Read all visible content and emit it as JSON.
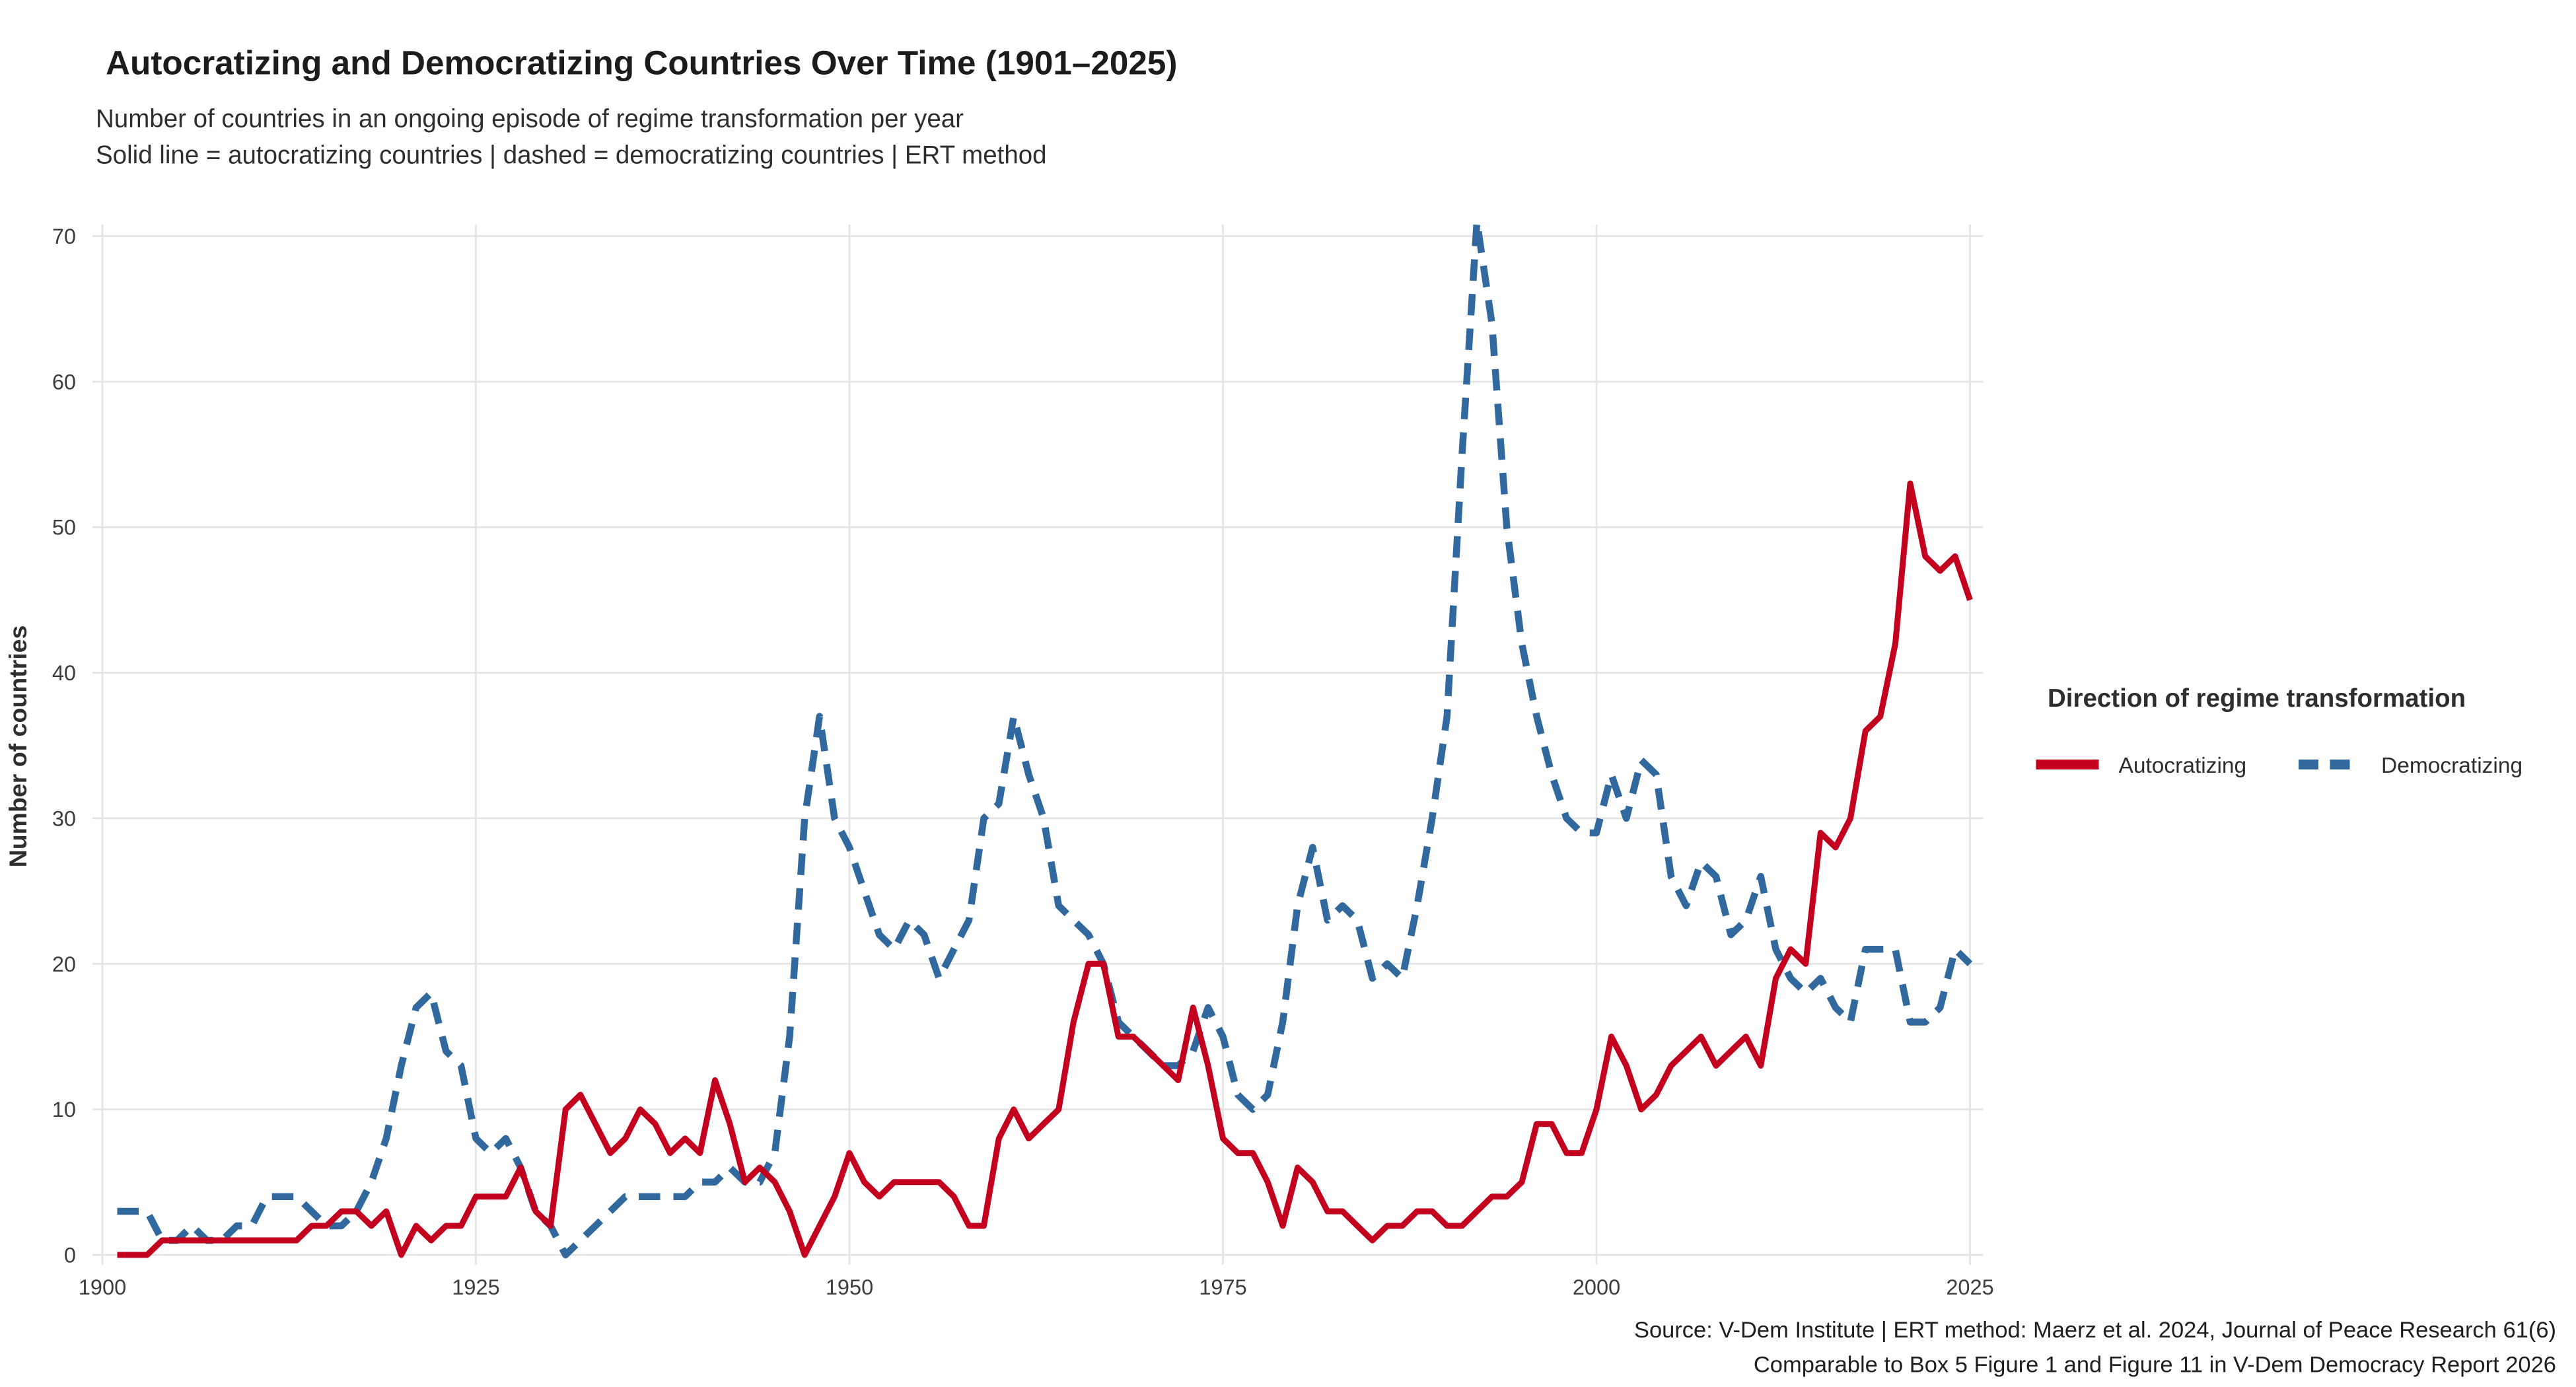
{
  "page": {
    "title": "Autocratizing and Democratizing Countries Over Time (1901–2025)",
    "subtitle1": "Number of countries in an ongoing episode of regime transformation per year",
    "subtitle2": "Solid line = autocratizing countries  |  dashed = democratizing countries  |  ERT method",
    "caption1": "Source: V-Dem Institute  |  ERT method: Maerz et al. 2024, Journal of Peace Research 61(6)",
    "caption2": "Comparable to Box 5 Figure 1 and Figure 11 in V-Dem Democracy Report 2026"
  },
  "legend": {
    "title": "Direction of regime transformation",
    "entries": [
      {
        "label": "Autocratizing",
        "color": "#c4001f",
        "dash": false
      },
      {
        "label": "Democratizing",
        "color": "#31699e",
        "dash": true
      }
    ]
  },
  "chart_data": {
    "type": "line",
    "title": "Autocratizing and Democratizing Countries Over Time (1901–2025)",
    "xlabel": "",
    "ylabel": "Number of countries",
    "xlim": [
      1900,
      2025
    ],
    "ylim": [
      0,
      70
    ],
    "xticks": [
      1900,
      1925,
      1950,
      1975,
      2000,
      2025
    ],
    "yticks": [
      0,
      10,
      20,
      30,
      40,
      50,
      60,
      70
    ],
    "grid": true,
    "grid_color": "#e4e4e4",
    "background": "#ffffff",
    "legend_position": "right",
    "x": [
      1901,
      1902,
      1903,
      1904,
      1905,
      1906,
      1907,
      1908,
      1909,
      1910,
      1911,
      1912,
      1913,
      1914,
      1915,
      1916,
      1917,
      1918,
      1919,
      1920,
      1921,
      1922,
      1923,
      1924,
      1925,
      1926,
      1927,
      1928,
      1929,
      1930,
      1931,
      1932,
      1933,
      1934,
      1935,
      1936,
      1937,
      1938,
      1939,
      1940,
      1941,
      1942,
      1943,
      1944,
      1945,
      1946,
      1947,
      1948,
      1949,
      1950,
      1951,
      1952,
      1953,
      1954,
      1955,
      1956,
      1957,
      1958,
      1959,
      1960,
      1961,
      1962,
      1963,
      1964,
      1965,
      1966,
      1967,
      1968,
      1969,
      1970,
      1971,
      1972,
      1973,
      1974,
      1975,
      1976,
      1977,
      1978,
      1979,
      1980,
      1981,
      1982,
      1983,
      1984,
      1985,
      1986,
      1987,
      1988,
      1989,
      1990,
      1991,
      1992,
      1993,
      1994,
      1995,
      1996,
      1997,
      1998,
      1999,
      2000,
      2001,
      2002,
      2003,
      2004,
      2005,
      2006,
      2007,
      2008,
      2009,
      2010,
      2011,
      2012,
      2013,
      2014,
      2015,
      2016,
      2017,
      2018,
      2019,
      2020,
      2021,
      2022,
      2023,
      2024,
      2025
    ],
    "series": [
      {
        "name": "Autocratizing",
        "color": "#c4001f",
        "style": "solid",
        "width": 3.6,
        "values": [
          0,
          0,
          0,
          1,
          1,
          1,
          1,
          1,
          1,
          1,
          1,
          1,
          1,
          2,
          2,
          3,
          3,
          2,
          3,
          0,
          2,
          1,
          2,
          2,
          4,
          4,
          4,
          6,
          3,
          2,
          10,
          11,
          9,
          7,
          8,
          10,
          9,
          7,
          8,
          7,
          12,
          9,
          5,
          6,
          5,
          3,
          0,
          2,
          4,
          7,
          5,
          4,
          5,
          5,
          5,
          5,
          4,
          2,
          2,
          8,
          10,
          8,
          9,
          10,
          16,
          20,
          20,
          15,
          15,
          14,
          13,
          12,
          17,
          13,
          8,
          7,
          7,
          5,
          2,
          6,
          5,
          3,
          3,
          2,
          1,
          2,
          2,
          3,
          3,
          2,
          2,
          3,
          4,
          4,
          5,
          9,
          9,
          7,
          7,
          10,
          15,
          13,
          10,
          11,
          13,
          14,
          15,
          13,
          14,
          15,
          13,
          19,
          21,
          20,
          29,
          28,
          30,
          36,
          37,
          42,
          53,
          48,
          47,
          48,
          45
        ]
      },
      {
        "name": "Democratizing",
        "color": "#31699e",
        "style": "dashed",
        "width": 4.2,
        "values": [
          3,
          3,
          3,
          1,
          1,
          2,
          1,
          1,
          2,
          2,
          4,
          4,
          4,
          3,
          2,
          2,
          3,
          5,
          8,
          13,
          17,
          18,
          14,
          13,
          8,
          7,
          8,
          6,
          3,
          2,
          0,
          1,
          2,
          3,
          4,
          4,
          4,
          4,
          4,
          5,
          5,
          6,
          5,
          5,
          7,
          15,
          30,
          37,
          30,
          28,
          25,
          22,
          21,
          23,
          22,
          19,
          21,
          23,
          30,
          31,
          37,
          33,
          30,
          24,
          23,
          22,
          20,
          16,
          15,
          14,
          13,
          13,
          14,
          17,
          15,
          11,
          10,
          11,
          16,
          24,
          28,
          23,
          24,
          23,
          19,
          20,
          19,
          24,
          30,
          37,
          55,
          71,
          64,
          50,
          42,
          37,
          33,
          30,
          29,
          29,
          33,
          30,
          34,
          33,
          26,
          24,
          27,
          26,
          22,
          23,
          26,
          21,
          19,
          18,
          19,
          17,
          16,
          21,
          21,
          21,
          16,
          16,
          17,
          21,
          20
        ]
      }
    ]
  }
}
